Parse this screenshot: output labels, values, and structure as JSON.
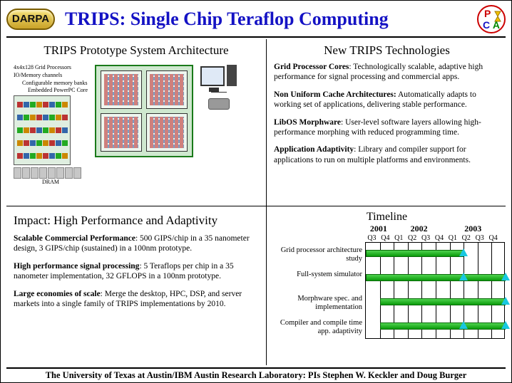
{
  "header": {
    "darpa": "DARPA",
    "title": "TRIPS: Single Chip Teraflop Computing"
  },
  "tl_section": {
    "title": "TRIPS Prototype System Architecture",
    "labels": {
      "l1": "4x4x128 Grid Processors",
      "l2": "IO/Memory channels",
      "l3": "Configurable memory banks",
      "l4": "Embedded PowerPC Core",
      "dram": "DRAM"
    }
  },
  "tr_section": {
    "title": "New TRIPS Technologies",
    "items": [
      {
        "b": "Grid Processor Cores",
        "t": ": Technologically scalable, adaptive high performance for signal processing and commercial apps."
      },
      {
        "b": "Non Uniform Cache Architectures:",
        "t": " Automatically adapts to working set of applications, delivering stable performance."
      },
      {
        "b": "LibOS Morphware",
        "t": ": User-level software layers allowing high-performance morphing with reduced programming time."
      },
      {
        "b": "Application Adaptivity",
        "t": ": Library and compiler support for applications to run on multiple platforms and environments."
      }
    ]
  },
  "bl_section": {
    "title": "Impact: High Performance and Adaptivity",
    "items": [
      {
        "b": "Scalable Commercial Performance",
        "t": ": 500 GIPS/chip in a 35 nanometer design, 3 GIPS/chip (sustained) in a 100nm prototype."
      },
      {
        "b": "High performance signal processing",
        "t": ": 5 Teraflops per chip in a 35 nanometer implementation, 32 GFLOPS in a 100nm prototype."
      },
      {
        "b": "Large economies of scale",
        "t": ": Merge the desktop, HPC, DSP, and server markets into a single family of TRIPS implementations by 2010."
      }
    ]
  },
  "timeline": {
    "title": "Timeline",
    "years": [
      "2001",
      "2002",
      "2003"
    ],
    "quarters": [
      "Q3",
      "Q4",
      "Q1",
      "Q2",
      "Q3",
      "Q4",
      "Q1",
      "Q2",
      "Q3",
      "Q4"
    ],
    "rows": [
      {
        "label": "Grid processor architecture study",
        "start": 0,
        "end": 7,
        "markers": [
          7
        ]
      },
      {
        "label": "Full-system simulator",
        "start": 0,
        "end": 10,
        "markers": [
          7,
          10
        ]
      },
      {
        "label": "Morphware spec. and implementation",
        "start": 1,
        "end": 10,
        "markers": [
          10
        ]
      },
      {
        "label": "Compiler and compile time app. adaptivity",
        "start": 1,
        "end": 10,
        "markers": [
          7,
          10
        ]
      }
    ],
    "bar_color": "#1fae1f",
    "marker_color": "#18c7e0"
  },
  "footer": "The University of Texas at Austin/IBM Austin Research Laboratory: PIs Stephen W. Keckler and Doug Burger"
}
